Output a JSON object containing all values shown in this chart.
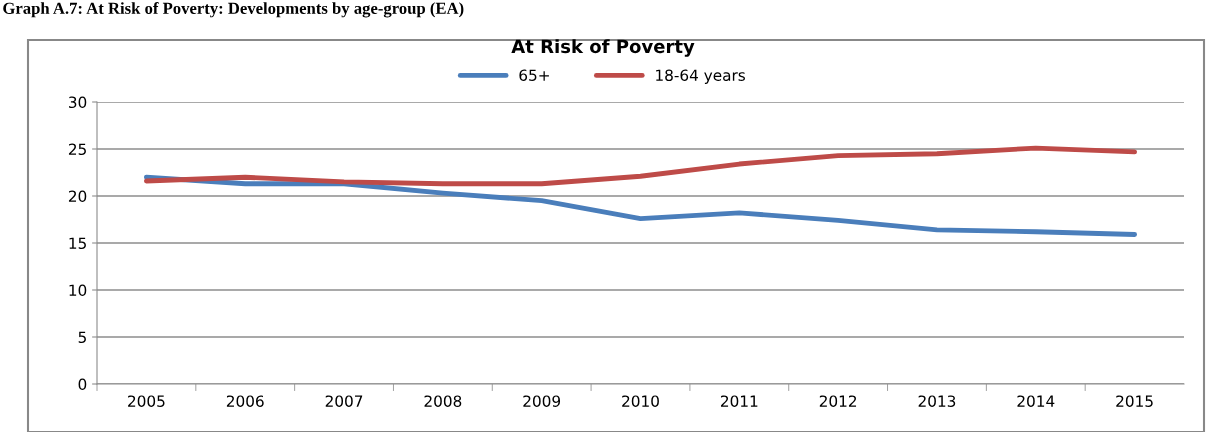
{
  "chart_data": {
    "type": "line",
    "title": "At Risk of Poverty",
    "annotations": [
      "Graph A.7: At Risk of Poverty: Developments by age-group (EA)"
    ],
    "categories": [
      "2005",
      "2006",
      "2007",
      "2008",
      "2009",
      "2010",
      "2011",
      "2012",
      "2013",
      "2014",
      "2015"
    ],
    "series": [
      {
        "name": "65+",
        "color": "#4a7ebb",
        "values": [
          22.0,
          21.3,
          21.3,
          20.3,
          19.5,
          17.6,
          18.2,
          17.4,
          16.4,
          16.2,
          15.9
        ]
      },
      {
        "name": "18-64 years",
        "color": "#be4b48",
        "values": [
          21.6,
          22.0,
          21.5,
          21.3,
          21.3,
          22.1,
          23.4,
          24.3,
          24.5,
          25.1,
          24.7
        ]
      }
    ],
    "ylim": [
      0,
      30
    ],
    "yticks": [
      0,
      5,
      10,
      15,
      20,
      25,
      30
    ],
    "grid": "y",
    "legend": "top",
    "marker": "none",
    "line_style": "solid"
  }
}
